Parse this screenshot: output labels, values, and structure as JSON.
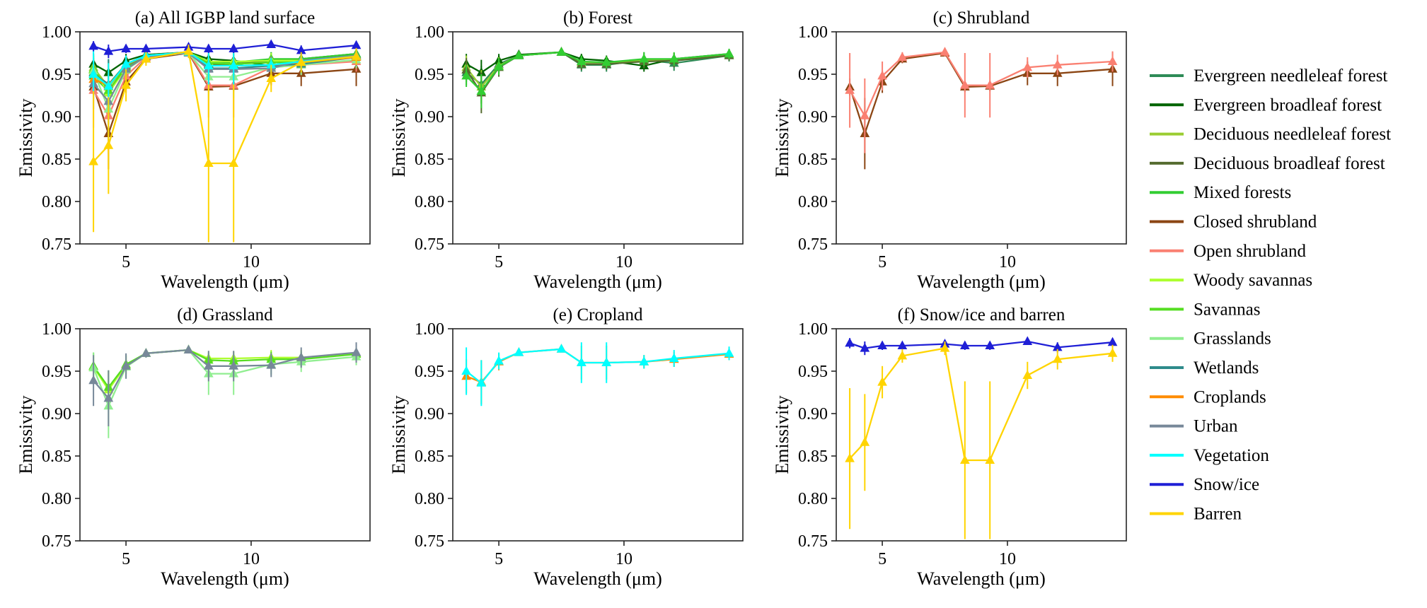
{
  "figure": {
    "background": "#ffffff",
    "axis_color": "#262626",
    "text_color": "#000000"
  },
  "chart_data": {
    "type": "line",
    "x_label": "Wavelength (μm)",
    "y_label": "Emissivity",
    "xlim": [
      3.16,
      14.75
    ],
    "ylim": [
      0.75,
      1.0
    ],
    "x_ticks": [
      5,
      10
    ],
    "y_ticks": [
      0.75,
      0.8,
      0.85,
      0.9,
      0.95,
      1.0
    ],
    "grid": false,
    "marker": "triangle-up",
    "legend_position": "right-outside",
    "x": [
      3.7,
      4.3,
      5.0,
      5.8,
      7.5,
      8.3,
      9.3,
      10.8,
      12.0,
      14.2
    ],
    "series": [
      {
        "key": "evergreen_needleleaf",
        "label": "Evergreen needleleaf forest",
        "color": "#2e8b57",
        "values": [
          0.952,
          0.938,
          0.962,
          0.972,
          0.976,
          0.961,
          0.961,
          0.967,
          0.963,
          0.972
        ],
        "err": [
          0.015,
          0.022,
          0.01,
          0.004,
          0.003,
          0.008,
          0.008,
          0.009,
          0.009,
          0.007
        ]
      },
      {
        "key": "evergreen_broadleaf",
        "label": "Evergreen broadleaf forest",
        "color": "#006400",
        "values": [
          0.962,
          0.952,
          0.966,
          0.973,
          0.976,
          0.968,
          0.966,
          0.96,
          0.968,
          0.974
        ],
        "err": [
          0.012,
          0.015,
          0.008,
          0.004,
          0.003,
          0.006,
          0.006,
          0.007,
          0.007,
          0.006
        ]
      },
      {
        "key": "deciduous_needleleaf",
        "label": "Deciduous needleleaf forest",
        "color": "#9acd32",
        "values": [
          0.958,
          0.935,
          0.96,
          0.972,
          0.976,
          0.964,
          0.964,
          0.966,
          0.967,
          0.973
        ],
        "err": [
          0.014,
          0.02,
          0.01,
          0.004,
          0.003,
          0.007,
          0.007,
          0.008,
          0.008,
          0.006
        ]
      },
      {
        "key": "deciduous_broadleaf",
        "label": "Deciduous broadleaf forest",
        "color": "#556b2f",
        "values": [
          0.955,
          0.928,
          0.958,
          0.972,
          0.976,
          0.962,
          0.962,
          0.965,
          0.966,
          0.972
        ],
        "err": [
          0.014,
          0.024,
          0.011,
          0.004,
          0.003,
          0.007,
          0.007,
          0.008,
          0.008,
          0.006
        ]
      },
      {
        "key": "mixed_forests",
        "label": "Mixed forests",
        "color": "#32cd32",
        "values": [
          0.948,
          0.93,
          0.959,
          0.972,
          0.976,
          0.965,
          0.964,
          0.968,
          0.968,
          0.974
        ],
        "err": [
          0.013,
          0.02,
          0.01,
          0.004,
          0.003,
          0.007,
          0.007,
          0.008,
          0.008,
          0.006
        ]
      },
      {
        "key": "closed_shrubland",
        "label": "Closed shrubland",
        "color": "#8b4513",
        "values": [
          0.935,
          0.88,
          0.941,
          0.968,
          0.975,
          0.935,
          0.936,
          0.951,
          0.951,
          0.956
        ],
        "err": [
          0.01,
          0.042,
          0.013,
          0.005,
          0.004,
          0.006,
          0.006,
          0.014,
          0.015,
          0.02
        ]
      },
      {
        "key": "open_shrubland",
        "label": "Open shrubland",
        "color": "#fa8072",
        "values": [
          0.931,
          0.901,
          0.948,
          0.97,
          0.976,
          0.937,
          0.937,
          0.958,
          0.961,
          0.965
        ],
        "err": [
          0.044,
          0.044,
          0.017,
          0.006,
          0.005,
          0.038,
          0.038,
          0.012,
          0.012,
          0.012
        ]
      },
      {
        "key": "woody_savannas",
        "label": "Woody savannas",
        "color": "#adff2f",
        "values": [
          0.955,
          0.928,
          0.957,
          0.971,
          0.975,
          0.965,
          0.965,
          0.966,
          0.966,
          0.971
        ],
        "err": [
          0.016,
          0.022,
          0.011,
          0.004,
          0.003,
          0.008,
          0.008,
          0.009,
          0.009,
          0.007
        ]
      },
      {
        "key": "savannas",
        "label": "Savannas",
        "color": "#55dd22",
        "values": [
          0.956,
          0.931,
          0.958,
          0.971,
          0.975,
          0.963,
          0.962,
          0.964,
          0.964,
          0.97
        ],
        "err": [
          0.016,
          0.02,
          0.011,
          0.004,
          0.003,
          0.008,
          0.008,
          0.009,
          0.009,
          0.007
        ]
      },
      {
        "key": "grasslands",
        "label": "Grasslands",
        "color": "#90ee90",
        "values": [
          0.954,
          0.909,
          0.955,
          0.971,
          0.975,
          0.947,
          0.947,
          0.958,
          0.961,
          0.967
        ],
        "err": [
          0.018,
          0.038,
          0.013,
          0.005,
          0.004,
          0.025,
          0.025,
          0.012,
          0.012,
          0.01
        ]
      },
      {
        "key": "wetlands",
        "label": "Wetlands",
        "color": "#2e8b8b",
        "values": [
          0.95,
          0.938,
          0.96,
          0.972,
          0.976,
          0.957,
          0.957,
          0.96,
          0.962,
          0.97
        ],
        "err": [
          0.016,
          0.03,
          0.012,
          0.005,
          0.004,
          0.01,
          0.01,
          0.01,
          0.01,
          0.008
        ]
      },
      {
        "key": "croplands",
        "label": "Croplands",
        "color": "#ff8c00",
        "values": [
          0.944,
          0.937,
          0.961,
          0.972,
          0.976,
          0.96,
          0.96,
          0.961,
          0.964,
          0.97
        ],
        "err": [
          0.02,
          0.026,
          0.01,
          0.004,
          0.003,
          0.02,
          0.02,
          0.008,
          0.009,
          0.007
        ]
      },
      {
        "key": "urban",
        "label": "Urban",
        "color": "#778899",
        "values": [
          0.939,
          0.918,
          0.956,
          0.971,
          0.975,
          0.956,
          0.956,
          0.957,
          0.966,
          0.972
        ],
        "err": [
          0.03,
          0.033,
          0.015,
          0.005,
          0.004,
          0.018,
          0.018,
          0.014,
          0.012,
          0.012
        ]
      },
      {
        "key": "vegetation",
        "label": "Vegetation",
        "color": "#00ffff",
        "values": [
          0.95,
          0.936,
          0.962,
          0.972,
          0.976,
          0.96,
          0.96,
          0.961,
          0.965,
          0.971
        ],
        "err": [
          0.028,
          0.027,
          0.01,
          0.004,
          0.003,
          0.024,
          0.024,
          0.008,
          0.01,
          0.008
        ]
      },
      {
        "key": "snow_ice",
        "label": "Snow/ice",
        "color": "#1f1fd6",
        "values": [
          0.983,
          0.977,
          0.98,
          0.98,
          0.982,
          0.98,
          0.98,
          0.985,
          0.978,
          0.984
        ],
        "err": [
          0.006,
          0.008,
          0.005,
          0.004,
          0.003,
          0.005,
          0.005,
          0.004,
          0.006,
          0.005
        ]
      },
      {
        "key": "barren",
        "label": "Barren",
        "color": "#ffd400",
        "values": [
          0.847,
          0.866,
          0.937,
          0.968,
          0.977,
          0.845,
          0.845,
          0.945,
          0.964,
          0.971
        ],
        "err": [
          0.083,
          0.057,
          0.019,
          0.008,
          0.008,
          0.093,
          0.093,
          0.016,
          0.012,
          0.01
        ]
      }
    ],
    "panels": [
      {
        "key": "a",
        "title": "(a) All IGBP land surface",
        "series": [
          "evergreen_needleleaf",
          "evergreen_broadleaf",
          "deciduous_needleleaf",
          "deciduous_broadleaf",
          "mixed_forests",
          "closed_shrubland",
          "open_shrubland",
          "woody_savannas",
          "savannas",
          "grasslands",
          "wetlands",
          "croplands",
          "urban",
          "vegetation",
          "snow_ice",
          "barren"
        ]
      },
      {
        "key": "b",
        "title": "(b) Forest",
        "series": [
          "evergreen_needleleaf",
          "evergreen_broadleaf",
          "deciduous_needleleaf",
          "deciduous_broadleaf",
          "mixed_forests"
        ]
      },
      {
        "key": "c",
        "title": "(c) Shrubland",
        "series": [
          "closed_shrubland",
          "open_shrubland"
        ]
      },
      {
        "key": "d",
        "title": "(d) Grassland",
        "series": [
          "woody_savannas",
          "savannas",
          "grasslands",
          "urban"
        ]
      },
      {
        "key": "e",
        "title": "(e) Cropland",
        "series": [
          "croplands",
          "vegetation"
        ]
      },
      {
        "key": "f",
        "title": "(f) Snow/ice and barren",
        "series": [
          "snow_ice",
          "barren"
        ]
      }
    ]
  }
}
